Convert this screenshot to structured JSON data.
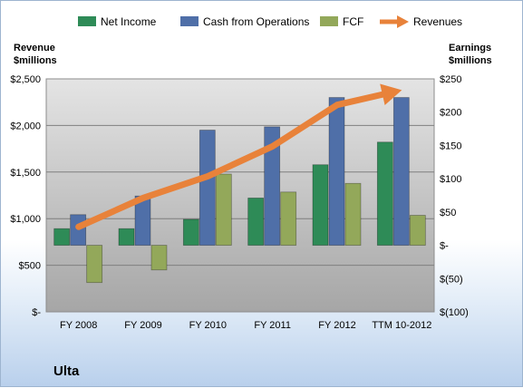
{
  "chart_data": {
    "type": "bar",
    "categories": [
      "FY 2008",
      "FY 2009",
      "FY 2010",
      "FY 2011",
      "FY 2012",
      "TTM 10-2012"
    ],
    "series": [
      {
        "name": "Net Income",
        "axis": "right",
        "color": "#2e8b57",
        "values": [
          25,
          25,
          39,
          71,
          121,
          155
        ]
      },
      {
        "name": "Cash from Operations",
        "axis": "right",
        "color": "#4f6fa8",
        "values": [
          46,
          74,
          173,
          178,
          222,
          222
        ]
      },
      {
        "name": "FCF",
        "axis": "right",
        "color": "#93a85a",
        "values": [
          -56,
          -37,
          107,
          80,
          93,
          45
        ]
      },
      {
        "name": "Revenues",
        "axis": "left",
        "type": "line",
        "color": "#e8823a",
        "values": [
          912,
          1222,
          1455,
          1776,
          2221,
          2380
        ]
      }
    ],
    "left_axis": {
      "title_line1": "Revenue",
      "title_line2": "$millions",
      "min": 0,
      "max": 2500,
      "ticks": [
        0,
        500,
        1000,
        1500,
        2000,
        2500
      ],
      "tick_labels": [
        "$-",
        "$500",
        "$1,000",
        "$1,500",
        "$2,000",
        "$2,500"
      ]
    },
    "right_axis": {
      "title_line1": "Earnings",
      "title_line2": "$millions",
      "min": -100,
      "max": 250,
      "ticks": [
        -100,
        -50,
        0,
        50,
        100,
        150,
        200,
        250
      ],
      "tick_labels": [
        "$(100)",
        "$(50)",
        "$-",
        "$50",
        "$100",
        "$150",
        "$200",
        "$250"
      ]
    },
    "grid": true,
    "legend_position": "top",
    "company_label": "Ulta"
  }
}
